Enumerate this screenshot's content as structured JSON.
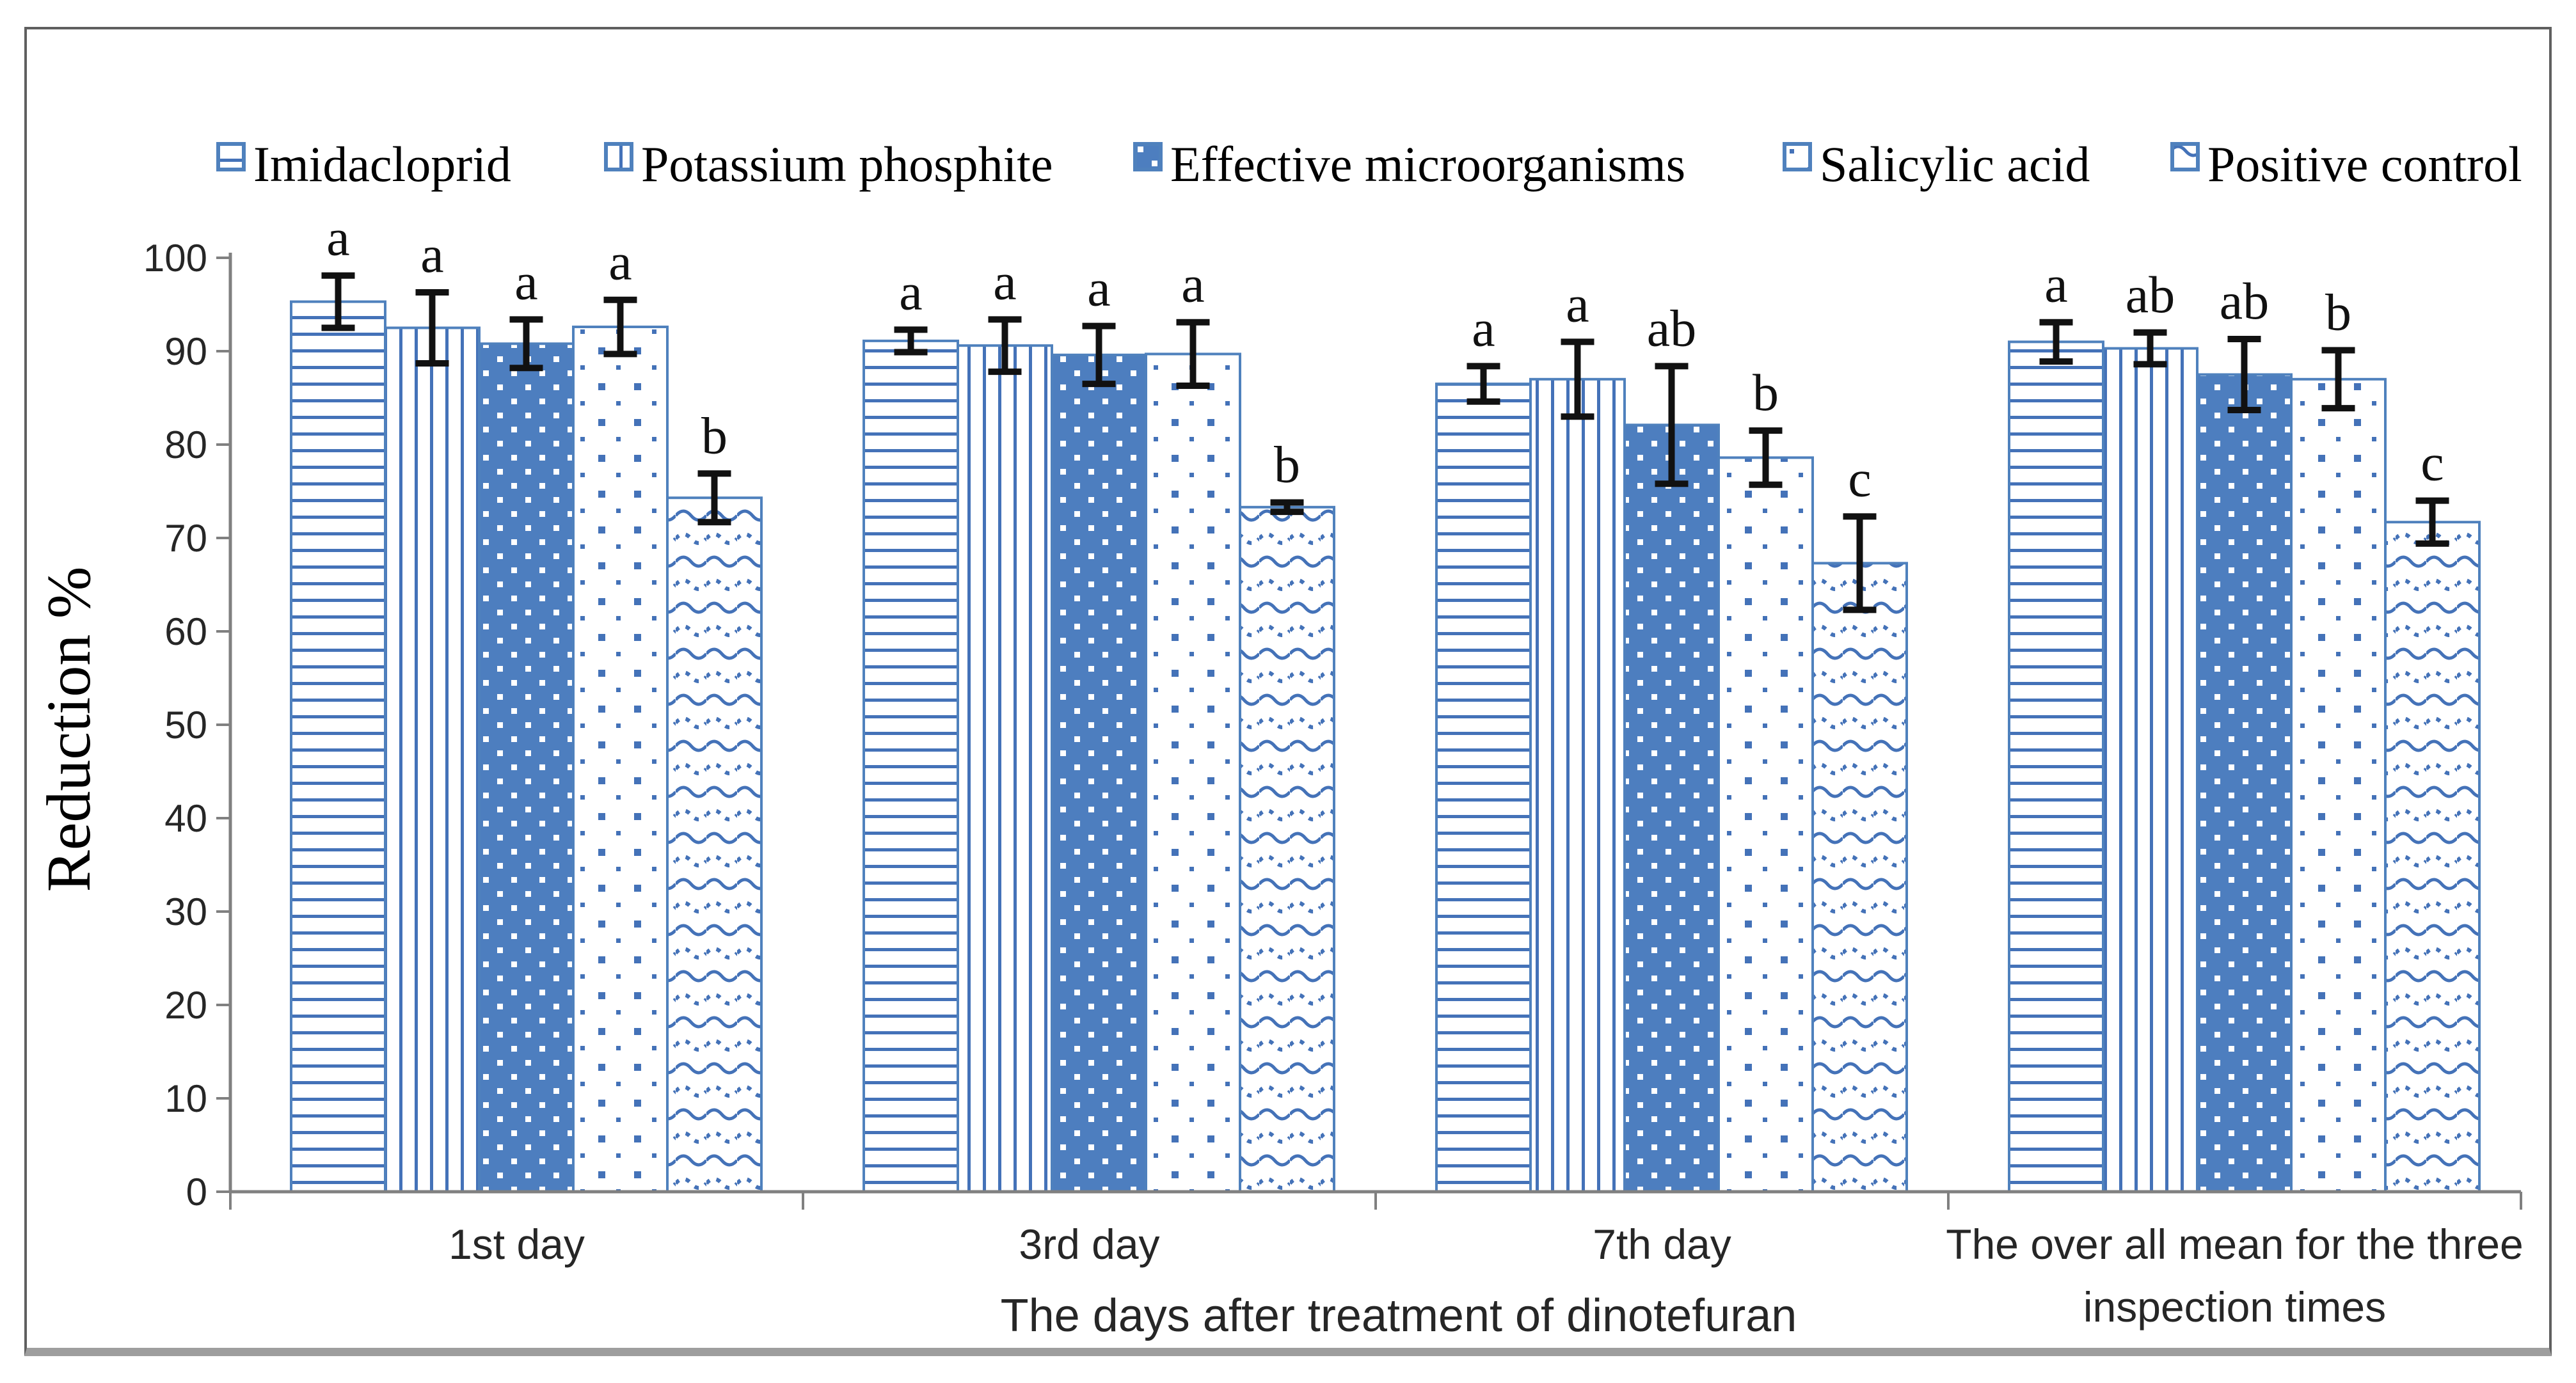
{
  "chart_data": {
    "type": "bar",
    "title": "",
    "ylabel": "Reduction %",
    "xlabel": "The days after treatment of dinotefuran",
    "ylim": [
      0,
      100
    ],
    "ytick_step": 10,
    "yticks": [
      0,
      10,
      20,
      30,
      40,
      50,
      60,
      70,
      80,
      90,
      100
    ],
    "grid": "off",
    "legend_position": "top",
    "categories": [
      "1st day",
      "3rd day",
      "7th day",
      "The over all mean for the three inspection times"
    ],
    "category_display_lines": [
      [
        "1st day"
      ],
      [
        "3rd day"
      ],
      [
        "7th day"
      ],
      [
        "The over all mean for the three",
        "inspection times"
      ]
    ],
    "series": [
      {
        "name": "Imidacloprid",
        "pattern": "horizontal-lines",
        "values": [
          95.3,
          91.1,
          86.5,
          91.0
        ],
        "errors": [
          2.8,
          1.2,
          1.9,
          2.1
        ],
        "letters": [
          "a",
          "a",
          "a",
          "a"
        ]
      },
      {
        "name": "Potassium phosphite",
        "pattern": "vertical-lines",
        "values": [
          92.5,
          90.6,
          87.0,
          90.3
        ],
        "errors": [
          3.8,
          2.8,
          4.0,
          1.7
        ],
        "letters": [
          "a",
          "a",
          "a",
          "ab"
        ]
      },
      {
        "name": "Effective microorganisms",
        "pattern": "solid-white-dots",
        "values": [
          90.8,
          89.6,
          82.1,
          87.5
        ],
        "errors": [
          2.6,
          3.1,
          6.3,
          3.8
        ],
        "letters": [
          "a",
          "a",
          "ab",
          "ab"
        ]
      },
      {
        "name": "Salicylic acid",
        "pattern": "sparse-blue-dots",
        "values": [
          92.6,
          89.7,
          78.6,
          87.0
        ],
        "errors": [
          2.9,
          3.4,
          2.9,
          3.1
        ],
        "letters": [
          "a",
          "a",
          "b",
          "b"
        ]
      },
      {
        "name": "Positive control",
        "pattern": "waves",
        "values": [
          74.3,
          73.3,
          67.3,
          71.7
        ],
        "errors": [
          2.6,
          0.5,
          5.0,
          2.3
        ],
        "letters": [
          "b",
          "b",
          "c",
          "c"
        ]
      }
    ],
    "colors": {
      "bar_fill_blue": "#4d7ebf",
      "pattern_line_blue": "#4472b8",
      "bar_stroke_blue": "#4f81bd",
      "error_bar_black": "#111111",
      "axis_gray": "#808080",
      "tick_text": "#262626",
      "letter_text": "#111111",
      "frame_border": "#5f5f5f",
      "frame_bottom_band": "#9e9e9e"
    }
  }
}
